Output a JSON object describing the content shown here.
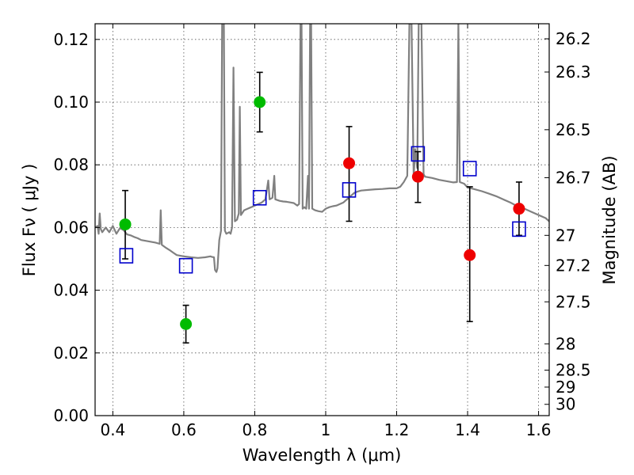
{
  "chart_data": {
    "type": "scatter",
    "xlabel": "Wavelength  λ (μm)",
    "ylabel": "Flux  Fν  ( μJy )",
    "ylabel_right": "Magnitude (AB)",
    "xlim": [
      0.35,
      1.63
    ],
    "ylim": [
      0.0,
      0.125
    ],
    "grid": true,
    "x_ticks": [
      0.4,
      0.6,
      0.8,
      1.0,
      1.2,
      1.4,
      1.6
    ],
    "x_tick_labels": [
      "0.4",
      "0.6",
      "0.8",
      "1",
      "1.2",
      "1.4",
      "1.6"
    ],
    "y_ticks": [
      0.0,
      0.02,
      0.04,
      0.06,
      0.08,
      0.1,
      0.12
    ],
    "y_tick_labels": [
      "0.00",
      "0.02",
      "0.04",
      "0.06",
      "0.08",
      "0.10",
      "0.12"
    ],
    "right_ticks": [
      {
        "label": "26.2",
        "flux": 0.1202
      },
      {
        "label": "26.3",
        "flux": 0.1096
      },
      {
        "label": "26.5",
        "flux": 0.0912
      },
      {
        "label": "26.7",
        "flux": 0.0759
      },
      {
        "label": "27",
        "flux": 0.0575
      },
      {
        "label": "27.2",
        "flux": 0.0479
      },
      {
        "label": "27.5",
        "flux": 0.0363
      },
      {
        "label": "28",
        "flux": 0.0229
      },
      {
        "label": "28.5",
        "flux": 0.0145
      },
      {
        "label": "29",
        "flux": 0.0091
      },
      {
        "label": "30",
        "flux": 0.0036
      }
    ],
    "series": [
      {
        "kind": "model-spectrum",
        "color": "#808080",
        "points": [
          [
            0.35,
            0.06
          ],
          [
            0.357,
            0.0605
          ],
          [
            0.36,
            0.058
          ],
          [
            0.363,
            0.0645
          ],
          [
            0.366,
            0.0595
          ],
          [
            0.37,
            0.0585
          ],
          [
            0.38,
            0.06
          ],
          [
            0.39,
            0.0585
          ],
          [
            0.4,
            0.0605
          ],
          [
            0.41,
            0.058
          ],
          [
            0.42,
            0.0598
          ],
          [
            0.43,
            0.0592
          ],
          [
            0.44,
            0.0578
          ],
          [
            0.45,
            0.0575
          ],
          [
            0.46,
            0.057
          ],
          [
            0.47,
            0.0566
          ],
          [
            0.48,
            0.056
          ],
          [
            0.5,
            0.0556
          ],
          [
            0.52,
            0.0552
          ],
          [
            0.532,
            0.0548
          ],
          [
            0.535,
            0.0655
          ],
          [
            0.538,
            0.0545
          ],
          [
            0.55,
            0.0535
          ],
          [
            0.56,
            0.0528
          ],
          [
            0.57,
            0.052
          ],
          [
            0.58,
            0.0512
          ],
          [
            0.6,
            0.0508
          ],
          [
            0.62,
            0.0505
          ],
          [
            0.64,
            0.0503
          ],
          [
            0.66,
            0.0505
          ],
          [
            0.675,
            0.0508
          ],
          [
            0.68,
            0.0506
          ],
          [
            0.685,
            0.0505
          ],
          [
            0.688,
            0.0465
          ],
          [
            0.692,
            0.0458
          ],
          [
            0.695,
            0.047
          ],
          [
            0.7,
            0.056
          ],
          [
            0.705,
            0.059
          ],
          [
            0.708,
            0.125
          ],
          [
            0.713,
            0.125
          ],
          [
            0.716,
            0.059
          ],
          [
            0.72,
            0.058
          ],
          [
            0.728,
            0.0585
          ],
          [
            0.732,
            0.058
          ],
          [
            0.736,
            0.06
          ],
          [
            0.74,
            0.111
          ],
          [
            0.744,
            0.062
          ],
          [
            0.75,
            0.0625
          ],
          [
            0.755,
            0.0645
          ],
          [
            0.758,
            0.0985
          ],
          [
            0.761,
            0.064
          ],
          [
            0.77,
            0.0655
          ],
          [
            0.78,
            0.066
          ],
          [
            0.79,
            0.0665
          ],
          [
            0.8,
            0.067
          ],
          [
            0.81,
            0.0675
          ],
          [
            0.82,
            0.068
          ],
          [
            0.83,
            0.069
          ],
          [
            0.838,
            0.075
          ],
          [
            0.842,
            0.069
          ],
          [
            0.85,
            0.0695
          ],
          [
            0.855,
            0.0765
          ],
          [
            0.858,
            0.069
          ],
          [
            0.87,
            0.0685
          ],
          [
            0.88,
            0.0683
          ],
          [
            0.89,
            0.0682
          ],
          [
            0.9,
            0.068
          ],
          [
            0.91,
            0.0678
          ],
          [
            0.92,
            0.067
          ],
          [
            0.925,
            0.0675
          ],
          [
            0.929,
            0.125
          ],
          [
            0.932,
            0.125
          ],
          [
            0.935,
            0.066
          ],
          [
            0.94,
            0.0665
          ],
          [
            0.945,
            0.066
          ],
          [
            0.95,
            0.0765
          ],
          [
            0.953,
            0.066
          ],
          [
            0.956,
            0.125
          ],
          [
            0.959,
            0.125
          ],
          [
            0.962,
            0.066
          ],
          [
            0.97,
            0.0655
          ],
          [
            0.98,
            0.0652
          ],
          [
            0.99,
            0.065
          ],
          [
            1.0,
            0.066
          ],
          [
            1.01,
            0.0665
          ],
          [
            1.02,
            0.0668
          ],
          [
            1.03,
            0.067
          ],
          [
            1.04,
            0.0675
          ],
          [
            1.05,
            0.068
          ],
          [
            1.06,
            0.069
          ],
          [
            1.07,
            0.07
          ],
          [
            1.08,
            0.071
          ],
          [
            1.09,
            0.0715
          ],
          [
            1.1,
            0.0718
          ],
          [
            1.12,
            0.072
          ],
          [
            1.14,
            0.0722
          ],
          [
            1.16,
            0.0723
          ],
          [
            1.18,
            0.0725
          ],
          [
            1.2,
            0.0725
          ],
          [
            1.21,
            0.073
          ],
          [
            1.22,
            0.0745
          ],
          [
            1.23,
            0.0765
          ],
          [
            1.236,
            0.125
          ],
          [
            1.242,
            0.125
          ],
          [
            1.248,
            0.076
          ],
          [
            1.252,
            0.085
          ],
          [
            1.258,
            0.079
          ],
          [
            1.262,
            0.125
          ],
          [
            1.27,
            0.125
          ],
          [
            1.276,
            0.077
          ],
          [
            1.28,
            0.0762
          ],
          [
            1.3,
            0.0758
          ],
          [
            1.32,
            0.0752
          ],
          [
            1.34,
            0.0748
          ],
          [
            1.36,
            0.0744
          ],
          [
            1.37,
            0.0745
          ],
          [
            1.374,
            0.125
          ],
          [
            1.378,
            0.0745
          ],
          [
            1.39,
            0.074
          ],
          [
            1.4,
            0.0728
          ],
          [
            1.42,
            0.0722
          ],
          [
            1.44,
            0.0716
          ],
          [
            1.46,
            0.0708
          ],
          [
            1.48,
            0.07
          ],
          [
            1.5,
            0.069
          ],
          [
            1.52,
            0.068
          ],
          [
            1.54,
            0.0668
          ],
          [
            1.56,
            0.066
          ],
          [
            1.58,
            0.065
          ],
          [
            1.6,
            0.064
          ],
          [
            1.62,
            0.063
          ],
          [
            1.63,
            0.062
          ]
        ]
      },
      {
        "kind": "observed-green",
        "color": "#00bb00",
        "points": [
          {
            "x": 0.435,
            "y": 0.061,
            "err_low": 0.05,
            "err_high": 0.0718
          },
          {
            "x": 0.606,
            "y": 0.0292,
            "err_low": 0.0232,
            "err_high": 0.0352
          },
          {
            "x": 0.814,
            "y": 0.1,
            "err_low": 0.0905,
            "err_high": 0.1095
          }
        ]
      },
      {
        "kind": "observed-red",
        "color": "#ee0000",
        "points": [
          {
            "x": 1.066,
            "y": 0.0805,
            "err_low": 0.062,
            "err_high": 0.0922
          },
          {
            "x": 1.26,
            "y": 0.0762,
            "err_low": 0.068,
            "err_high": 0.0842
          },
          {
            "x": 1.406,
            "y": 0.0512,
            "err_low": 0.03,
            "err_high": 0.073
          },
          {
            "x": 1.545,
            "y": 0.066,
            "err_low": 0.0575,
            "err_high": 0.0745
          }
        ]
      },
      {
        "kind": "model-photometry",
        "color": "#0000cc",
        "points": [
          {
            "x": 0.438,
            "y": 0.051
          },
          {
            "x": 0.606,
            "y": 0.0478
          },
          {
            "x": 0.814,
            "y": 0.0695
          },
          {
            "x": 1.066,
            "y": 0.072
          },
          {
            "x": 1.26,
            "y": 0.0835
          },
          {
            "x": 1.406,
            "y": 0.0788
          },
          {
            "x": 1.545,
            "y": 0.0595
          }
        ]
      }
    ]
  }
}
